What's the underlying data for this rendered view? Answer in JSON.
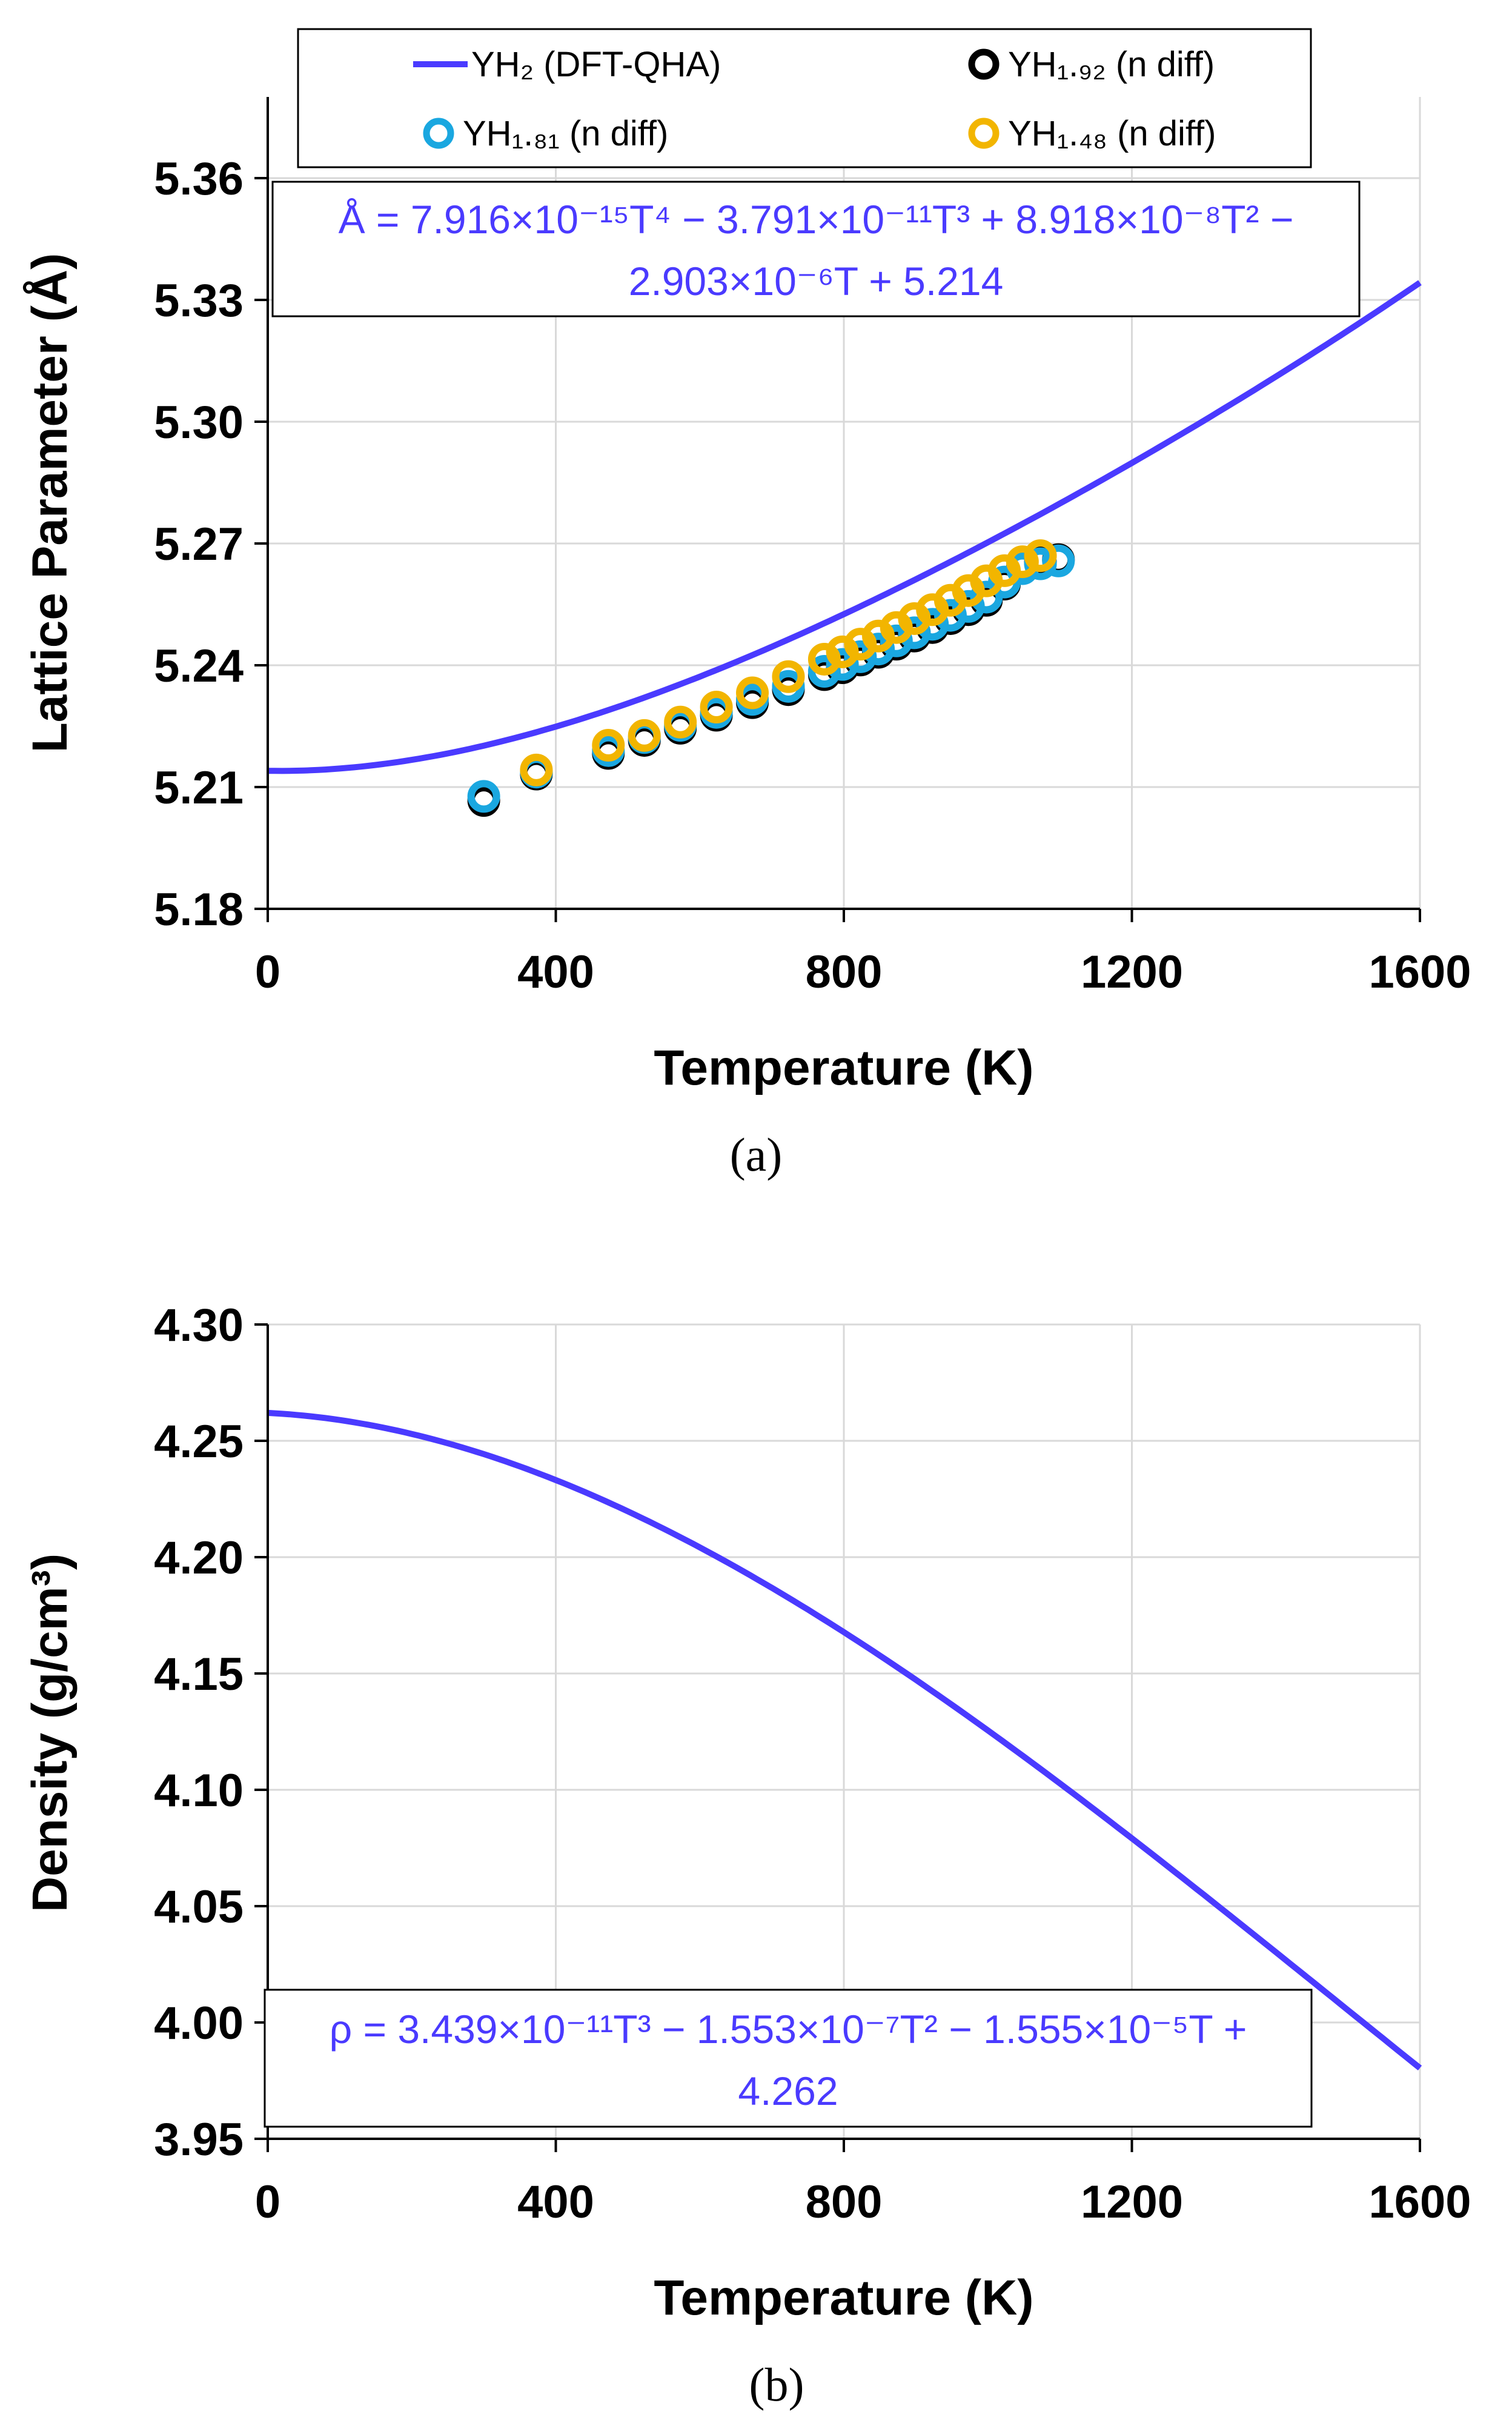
{
  "colors": {
    "curve": "#4a3aff",
    "yh192": "#000000",
    "yh181": "#1aa7e0",
    "yh148": "#f2b500",
    "grid": "#d9d9d9",
    "equation": "#4a3aff"
  },
  "chart_data": [
    {
      "id": "a",
      "type": "line",
      "caption": "(a)",
      "xlabel": "Temperature (K)",
      "ylabel": "Lattice Parameter (Å)",
      "xlim": [
        0,
        1600
      ],
      "ylim": [
        5.18,
        5.38
      ],
      "xticks": [
        "0",
        "400",
        "800",
        "1200",
        "1600"
      ],
      "yticks": [
        "5.18",
        "5.21",
        "5.24",
        "5.27",
        "5.30",
        "5.33",
        "5.36"
      ],
      "grid": true,
      "legend_position": "top",
      "legend": [
        {
          "label": "YH₂ (DFT-QHA)",
          "marker": "line",
          "color": "#4a3aff"
        },
        {
          "label": "YH₁.₉₂ (n diff)",
          "marker": "circle",
          "color": "#000000"
        },
        {
          "label": "YH₁.₈₁ (n diff)",
          "marker": "circle",
          "color": "#1aa7e0"
        },
        {
          "label": "YH₁.₄₈ (n diff)",
          "marker": "circle",
          "color": "#f2b500"
        }
      ],
      "equation": {
        "line1": "Å = 7.916×10⁻¹⁵T⁴ − 3.791×10⁻¹¹T³ + 8.918×10⁻⁸T² −",
        "line2": "2.903×10⁻⁶T + 5.214"
      },
      "fit": {
        "name": "YH₂ (DFT-QHA)",
        "coefficients": [
          5.214,
          -2.903e-06,
          8.918e-08,
          -3.791e-11,
          7.916e-15
        ],
        "x_range": [
          0,
          1600
        ]
      },
      "series": [
        {
          "name": "YH₁.₉₂ (n diff)",
          "color": "#000000",
          "points": [
            [
              300,
              5.2067
            ],
            [
              373,
              5.2132
            ],
            [
              473,
              5.2183
            ],
            [
              523,
              5.2215
            ],
            [
              573,
              5.2245
            ],
            [
              623,
              5.2277
            ],
            [
              673,
              5.2308
            ],
            [
              723,
              5.234
            ],
            [
              773,
              5.2377
            ],
            [
              798,
              5.2394
            ],
            [
              823,
              5.2413
            ],
            [
              848,
              5.2432
            ],
            [
              873,
              5.2452
            ],
            [
              898,
              5.2472
            ],
            [
              923,
              5.2493
            ],
            [
              948,
              5.2515
            ],
            [
              973,
              5.2537
            ],
            [
              998,
              5.256
            ],
            [
              1023,
              5.26
            ],
            [
              1048,
              5.264
            ],
            [
              1073,
              5.2653
            ],
            [
              1098,
              5.266
            ]
          ]
        },
        {
          "name": "YH₁.₈₁ (n diff)",
          "color": "#1aa7e0",
          "points": [
            [
              300,
              5.2077
            ],
            [
              373,
              5.2137
            ],
            [
              473,
              5.219
            ],
            [
              523,
              5.2222
            ],
            [
              573,
              5.2252
            ],
            [
              623,
              5.2284
            ],
            [
              673,
              5.2316
            ],
            [
              723,
              5.2348
            ],
            [
              773,
              5.2385
            ],
            [
              798,
              5.2402
            ],
            [
              823,
              5.2421
            ],
            [
              848,
              5.244
            ],
            [
              873,
              5.246
            ],
            [
              898,
              5.248
            ],
            [
              923,
              5.2501
            ],
            [
              948,
              5.2523
            ],
            [
              973,
              5.2545
            ],
            [
              998,
              5.2568
            ],
            [
              1023,
              5.2605
            ],
            [
              1048,
              5.2638
            ],
            [
              1073,
              5.265
            ],
            [
              1098,
              5.2657
            ]
          ]
        },
        {
          "name": "YH₁.₄₈ (n diff)",
          "color": "#f2b500",
          "points": [
            [
              373,
              5.2142
            ],
            [
              473,
              5.2203
            ],
            [
              523,
              5.2227
            ],
            [
              573,
              5.226
            ],
            [
              623,
              5.2297
            ],
            [
              673,
              5.2332
            ],
            [
              723,
              5.2372
            ],
            [
              773,
              5.2415
            ],
            [
              798,
              5.2433
            ],
            [
              823,
              5.2452
            ],
            [
              848,
              5.2472
            ],
            [
              873,
              5.2493
            ],
            [
              898,
              5.2515
            ],
            [
              923,
              5.2537
            ],
            [
              948,
              5.256
            ],
            [
              973,
              5.2584
            ],
            [
              998,
              5.2608
            ],
            [
              1023,
              5.2633
            ],
            [
              1048,
              5.2655
            ],
            [
              1073,
              5.267
            ]
          ]
        }
      ]
    },
    {
      "id": "b",
      "type": "line",
      "caption": "(b)",
      "xlabel": "Temperature (K)",
      "ylabel": "Density (g/cm³)",
      "xlim": [
        0,
        1600
      ],
      "ylim": [
        3.95,
        4.3
      ],
      "xticks": [
        "0",
        "400",
        "800",
        "1200",
        "1600"
      ],
      "yticks": [
        "3.95",
        "4.00",
        "4.05",
        "4.10",
        "4.15",
        "4.20",
        "4.25",
        "4.30"
      ],
      "grid": true,
      "equation": {
        "line1": "ρ = 3.439×10⁻¹¹T³ − 1.553×10⁻⁷T² − 1.555×10⁻⁵T +",
        "line2": "4.262"
      },
      "fit": {
        "name": "density",
        "coefficients": [
          4.262,
          -1.555e-05,
          -1.553e-07,
          3.439e-11
        ],
        "x_range": [
          0,
          1600
        ]
      }
    }
  ]
}
